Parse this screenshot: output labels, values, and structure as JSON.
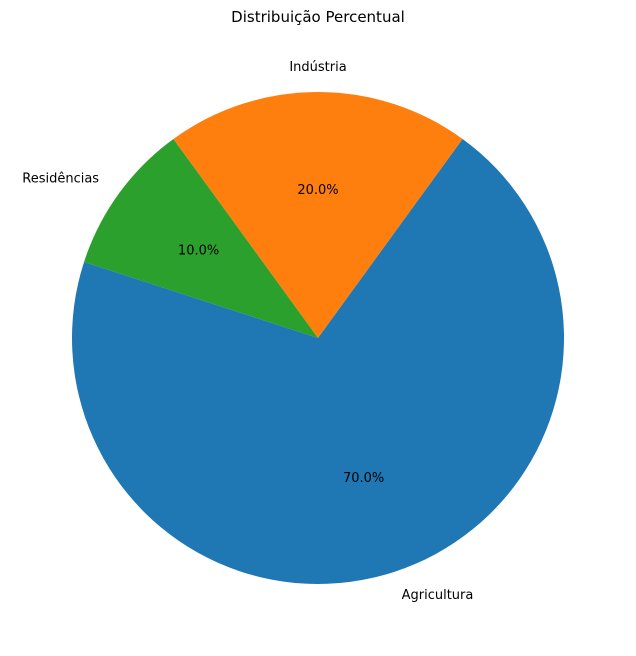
{
  "chart_data": {
    "type": "pie",
    "title": "Distribuição Percentual",
    "slices": [
      {
        "label": "Indústria",
        "value": 20.0,
        "pct_label": "20.0%",
        "color": "#ff7f0e"
      },
      {
        "label": "Residências",
        "value": 10.0,
        "pct_label": "10.0%",
        "color": "#2ca02c"
      },
      {
        "label": "Agricultura",
        "value": 70.0,
        "pct_label": "70.0%",
        "color": "#1f77b4"
      }
    ],
    "start_angle_deg": 54,
    "direction": "counterclockwise",
    "legend": "none"
  }
}
